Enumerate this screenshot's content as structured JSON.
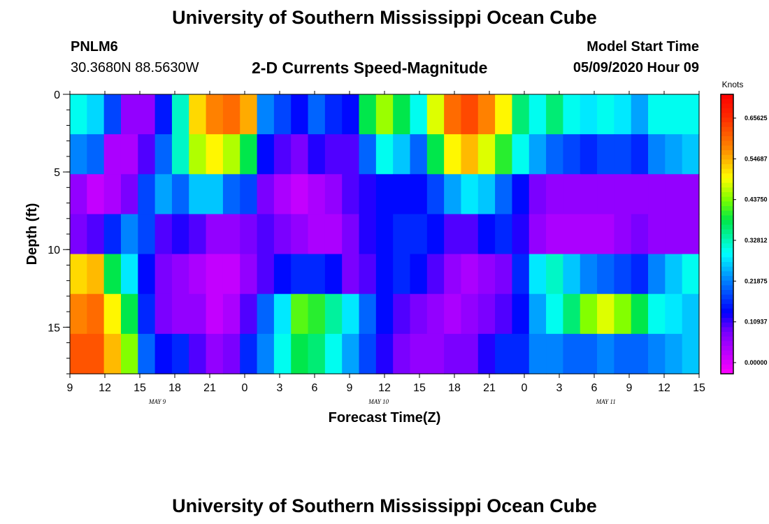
{
  "header": {
    "title": "University of Southern Mississippi Ocean Cube",
    "station_id": "PNLM6",
    "station_coords": "30.3680N 88.5630W",
    "chart_title": "2-D Currents Speed-Magnitude",
    "model_start_label": "Model Start Time",
    "model_start_value": "05/09/2020 Hour 09"
  },
  "footer": {
    "title": "University of Southern Mississippi Ocean Cube"
  },
  "chart_data": {
    "type": "heatmap",
    "title": "2-D Currents Speed-Magnitude",
    "xlabel": "Forecast Time(Z)",
    "ylabel": "Depth (ft)",
    "x_hours": [
      0,
      3,
      6,
      9,
      12,
      15,
      18,
      21,
      24,
      27,
      30,
      33,
      36,
      39,
      42,
      45,
      48,
      51,
      54
    ],
    "x_tick_labels": [
      "9",
      "12",
      "15",
      "18",
      "21",
      "0",
      "3",
      "6",
      "9",
      "12",
      "15",
      "18",
      "21",
      "0",
      "3",
      "6",
      "9",
      "12",
      "15"
    ],
    "date_labels": [
      {
        "text": "MAY 9",
        "hour": 7.5
      },
      {
        "text": "MAY 10",
        "hour": 26.5
      },
      {
        "text": "MAY 11",
        "hour": 46
      }
    ],
    "y_ticks": [
      0,
      5,
      10,
      15
    ],
    "ylim": [
      0,
      18
    ],
    "y_direction": "down",
    "colorbar": {
      "title": "Knots",
      "tick_labels": [
        "0.65625",
        "0.54687",
        "0.43750",
        "0.32812",
        "0.21875",
        "0.10937",
        "0.00000"
      ],
      "tick_values": [
        0.65625,
        0.546875,
        0.4375,
        0.328125,
        0.21875,
        0.109375,
        0.0
      ],
      "range": [
        -0.03,
        0.72
      ]
    },
    "speed_grid_knots": {
      "note_hours_per_column": 1.5,
      "depths_ft": [
        0.5,
        2.5,
        5.5,
        8.5,
        11.5,
        14.5,
        17.5
      ],
      "rows": [
        [
          0.3,
          0.27,
          0.18,
          0.06,
          0.06,
          0.15,
          0.32,
          0.52,
          0.58,
          0.6,
          0.55,
          0.22,
          0.18,
          0.14,
          0.2,
          0.16,
          0.14,
          0.38,
          0.45,
          0.38,
          0.3,
          0.48,
          0.6,
          0.63,
          0.58,
          0.5,
          0.36,
          0.3,
          0.36,
          0.3,
          0.28,
          0.3,
          0.28,
          0.24,
          0.3,
          0.3,
          0.3
        ],
        [
          0.22,
          0.2,
          0.04,
          0.04,
          0.1,
          0.2,
          0.32,
          0.46,
          0.5,
          0.46,
          0.38,
          0.14,
          0.1,
          0.08,
          0.12,
          0.1,
          0.1,
          0.2,
          0.3,
          0.26,
          0.2,
          0.38,
          0.5,
          0.54,
          0.48,
          0.4,
          0.3,
          0.24,
          0.2,
          0.18,
          0.16,
          0.18,
          0.18,
          0.16,
          0.22,
          0.24,
          0.26
        ],
        [
          0.06,
          0.02,
          0.04,
          0.08,
          0.18,
          0.24,
          0.2,
          0.26,
          0.26,
          0.2,
          0.18,
          0.08,
          0.04,
          0.02,
          0.04,
          0.06,
          0.1,
          0.12,
          0.14,
          0.14,
          0.14,
          0.18,
          0.24,
          0.28,
          0.26,
          0.2,
          0.14,
          0.08,
          0.06,
          0.06,
          0.06,
          0.06,
          0.06,
          0.06,
          0.06,
          0.06,
          0.06
        ],
        [
          0.08,
          0.1,
          0.16,
          0.22,
          0.18,
          0.1,
          0.12,
          0.1,
          0.06,
          0.06,
          0.08,
          0.1,
          0.08,
          0.06,
          0.04,
          0.04,
          0.08,
          0.12,
          0.14,
          0.16,
          0.16,
          0.14,
          0.1,
          0.1,
          0.14,
          0.16,
          0.12,
          0.06,
          0.04,
          0.04,
          0.04,
          0.04,
          0.06,
          0.08,
          0.06,
          0.06,
          0.06
        ],
        [
          0.52,
          0.54,
          0.38,
          0.28,
          0.14,
          0.08,
          0.06,
          0.04,
          0.02,
          0.02,
          0.06,
          0.1,
          0.14,
          0.16,
          0.16,
          0.14,
          0.08,
          0.1,
          0.14,
          0.16,
          0.14,
          0.1,
          0.06,
          0.04,
          0.06,
          0.08,
          0.16,
          0.28,
          0.32,
          0.26,
          0.22,
          0.2,
          0.18,
          0.16,
          0.22,
          0.26,
          0.3
        ],
        [
          0.58,
          0.6,
          0.5,
          0.38,
          0.16,
          0.08,
          0.06,
          0.06,
          0.02,
          0.04,
          0.1,
          0.2,
          0.28,
          0.42,
          0.4,
          0.34,
          0.28,
          0.2,
          0.14,
          0.1,
          0.08,
          0.06,
          0.04,
          0.06,
          0.08,
          0.1,
          0.14,
          0.24,
          0.3,
          0.36,
          0.44,
          0.48,
          0.44,
          0.38,
          0.3,
          0.28,
          0.26
        ],
        [
          0.62,
          0.62,
          0.54,
          0.44,
          0.2,
          0.14,
          0.16,
          0.1,
          0.06,
          0.08,
          0.16,
          0.22,
          0.3,
          0.38,
          0.36,
          0.3,
          0.24,
          0.18,
          0.12,
          0.08,
          0.06,
          0.06,
          0.08,
          0.08,
          0.12,
          0.16,
          0.16,
          0.22,
          0.22,
          0.2,
          0.2,
          0.22,
          0.2,
          0.2,
          0.22,
          0.24,
          0.26
        ]
      ]
    }
  }
}
